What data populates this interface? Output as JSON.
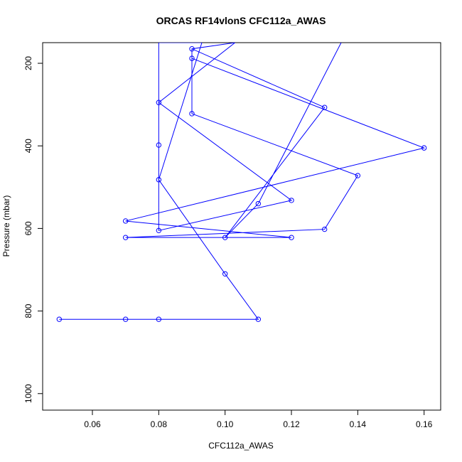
{
  "chart_data": {
    "type": "line",
    "title": "ORCAS RF14vlonS CFC112a_AWAS",
    "xlabel": "CFC112a_AWAS",
    "ylabel": "Pressure (mbar)",
    "xlim": [
      0.045,
      0.165
    ],
    "ylim": [
      1040,
      150
    ],
    "y_inverted": true,
    "x_ticks": [
      0.06,
      0.08,
      0.1,
      0.12,
      0.14,
      0.16
    ],
    "x_tick_labels": [
      "0.06",
      "0.08",
      "0.10",
      "0.12",
      "0.14",
      "0.16"
    ],
    "y_ticks": [
      200,
      400,
      600,
      800,
      1000
    ],
    "y_tick_labels": [
      "200",
      "400",
      "600",
      "800",
      "1000"
    ],
    "grid": false,
    "series": [
      {
        "color": "#0000ff",
        "points": [
          {
            "x": 0.05,
            "y": 820
          },
          {
            "x": 0.07,
            "y": 820
          },
          {
            "x": 0.08,
            "y": 820
          },
          {
            "x": 0.11,
            "y": 820
          },
          {
            "x": 0.1,
            "y": 710
          },
          {
            "x": 0.08,
            "y": 482
          },
          {
            "x": 0.093,
            "y": 150
          },
          {
            "x": 0.08,
            "y": 150
          },
          {
            "x": 0.08,
            "y": 398
          },
          {
            "x": 0.08,
            "y": 605
          },
          {
            "x": 0.12,
            "y": 532
          },
          {
            "x": 0.08,
            "y": 295
          },
          {
            "x": 0.103,
            "y": 150
          },
          {
            "x": 0.09,
            "y": 165
          },
          {
            "x": 0.09,
            "y": 188
          },
          {
            "x": 0.09,
            "y": 322
          },
          {
            "x": 0.14,
            "y": 472
          },
          {
            "x": 0.13,
            "y": 602
          },
          {
            "x": 0.07,
            "y": 622
          },
          {
            "x": 0.12,
            "y": 622
          },
          {
            "x": 0.07,
            "y": 582
          },
          {
            "x": 0.16,
            "y": 405
          },
          {
            "x": 0.09,
            "y": 188
          },
          {
            "x": 0.09,
            "y": 165
          },
          {
            "x": 0.13,
            "y": 307
          },
          {
            "x": 0.1,
            "y": 622
          },
          {
            "x": 0.11,
            "y": 540
          },
          {
            "x": 0.135,
            "y": 150
          }
        ],
        "markers": [
          {
            "x": 0.05,
            "y": 820
          },
          {
            "x": 0.07,
            "y": 820
          },
          {
            "x": 0.08,
            "y": 820
          },
          {
            "x": 0.11,
            "y": 820
          },
          {
            "x": 0.1,
            "y": 710
          },
          {
            "x": 0.08,
            "y": 482
          },
          {
            "x": 0.08,
            "y": 398
          },
          {
            "x": 0.08,
            "y": 605
          },
          {
            "x": 0.12,
            "y": 532
          },
          {
            "x": 0.08,
            "y": 295
          },
          {
            "x": 0.09,
            "y": 165
          },
          {
            "x": 0.09,
            "y": 188
          },
          {
            "x": 0.09,
            "y": 322
          },
          {
            "x": 0.14,
            "y": 472
          },
          {
            "x": 0.13,
            "y": 602
          },
          {
            "x": 0.07,
            "y": 622
          },
          {
            "x": 0.12,
            "y": 622
          },
          {
            "x": 0.07,
            "y": 582
          },
          {
            "x": 0.16,
            "y": 405
          },
          {
            "x": 0.13,
            "y": 307
          },
          {
            "x": 0.1,
            "y": 622
          },
          {
            "x": 0.11,
            "y": 540
          }
        ]
      }
    ]
  }
}
